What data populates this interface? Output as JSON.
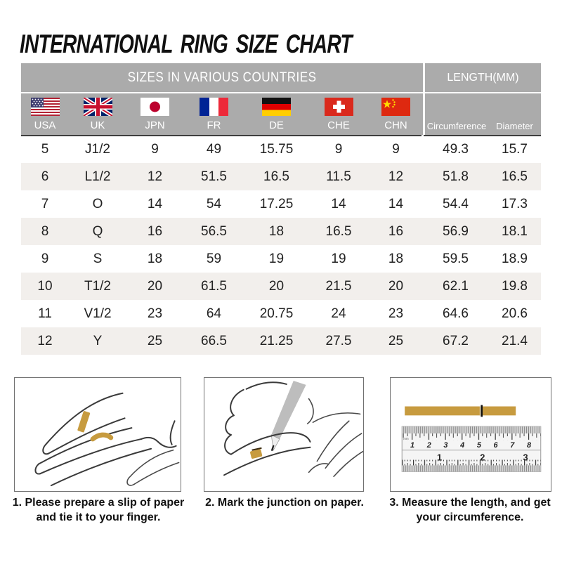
{
  "title": "INTERNATIONAL RING SIZE CHART",
  "table": {
    "header_left": "SIZES IN VARIOUS COUNTRIES",
    "header_right": "LENGTH(MM)",
    "columns": [
      {
        "code": "USA",
        "flag": "usa-flag"
      },
      {
        "code": "UK",
        "flag": "uk-flag"
      },
      {
        "code": "JPN",
        "flag": "japan-flag"
      },
      {
        "code": "FR",
        "flag": "france-flag"
      },
      {
        "code": "DE",
        "flag": "germany-flag"
      },
      {
        "code": "CHE",
        "flag": "switzerland-flag"
      },
      {
        "code": "CHN",
        "flag": "china-flag"
      }
    ],
    "length_columns": [
      "Circumference",
      "Diameter"
    ],
    "rows": [
      [
        "5",
        "J1/2",
        "9",
        "49",
        "15.75",
        "9",
        "9",
        "49.3",
        "15.7"
      ],
      [
        "6",
        "L1/2",
        "12",
        "51.5",
        "16.5",
        "11.5",
        "12",
        "51.8",
        "16.5"
      ],
      [
        "7",
        "O",
        "14",
        "54",
        "17.25",
        "14",
        "14",
        "54.4",
        "17.3"
      ],
      [
        "8",
        "Q",
        "16",
        "56.5",
        "18",
        "16.5",
        "16",
        "56.9",
        "18.1"
      ],
      [
        "9",
        "S",
        "18",
        "59",
        "19",
        "19",
        "18",
        "59.5",
        "18.9"
      ],
      [
        "10",
        "T1/2",
        "20",
        "61.5",
        "20",
        "21.5",
        "20",
        "62.1",
        "19.8"
      ],
      [
        "11",
        "V1/2",
        "23",
        "64",
        "20.75",
        "24",
        "23",
        "64.6",
        "20.6"
      ],
      [
        "12",
        "Y",
        "25",
        "66.5",
        "21.25",
        "27.5",
        "25",
        "67.2",
        "21.4"
      ]
    ],
    "colors": {
      "header_bg": "#ababab",
      "alt_row_bg": "#f2efec",
      "header_text": "#ffffff",
      "rule": "#3e3e3e"
    }
  },
  "chart_data": {
    "type": "table",
    "title": "INTERNATIONAL RING SIZE CHART",
    "column_groups": [
      "SIZES IN VARIOUS COUNTRIES",
      "LENGTH(MM)"
    ],
    "columns": [
      "USA",
      "UK",
      "JPN",
      "FR",
      "DE",
      "CHE",
      "CHN",
      "Circumference",
      "Diameter"
    ],
    "rows": [
      [
        "5",
        "J1/2",
        "9",
        "49",
        "15.75",
        "9",
        "9",
        "49.3",
        "15.7"
      ],
      [
        "6",
        "L1/2",
        "12",
        "51.5",
        "16.5",
        "11.5",
        "12",
        "51.8",
        "16.5"
      ],
      [
        "7",
        "O",
        "14",
        "54",
        "17.25",
        "14",
        "14",
        "54.4",
        "17.3"
      ],
      [
        "8",
        "Q",
        "16",
        "56.5",
        "18",
        "16.5",
        "16",
        "56.9",
        "18.1"
      ],
      [
        "9",
        "S",
        "18",
        "59",
        "19",
        "19",
        "18",
        "59.5",
        "18.9"
      ],
      [
        "10",
        "T1/2",
        "20",
        "61.5",
        "20",
        "21.5",
        "20",
        "62.1",
        "19.8"
      ],
      [
        "11",
        "V1/2",
        "23",
        "64",
        "20.75",
        "24",
        "23",
        "64.6",
        "20.6"
      ],
      [
        "12",
        "Y",
        "25",
        "66.5",
        "21.25",
        "27.5",
        "25",
        "67.2",
        "21.4"
      ]
    ]
  },
  "instructions": [
    {
      "caption": "1. Please prepare a slip of paper and tie it to your finger.",
      "illustration": "hand-with-paper-strip"
    },
    {
      "caption": "2. Mark the junction on paper.",
      "illustration": "pen-marking-junction"
    },
    {
      "caption": "3. Measure the length, and get your circumference.",
      "illustration": "ruler-measuring-strip"
    }
  ],
  "ruler": {
    "unit_label": "mm",
    "cm_numbers": [
      "1",
      "2",
      "3",
      "4",
      "5",
      "6",
      "7",
      "8"
    ],
    "inch_numbers": [
      "1",
      "2",
      "3"
    ],
    "strip_color": "#c79b3f"
  }
}
